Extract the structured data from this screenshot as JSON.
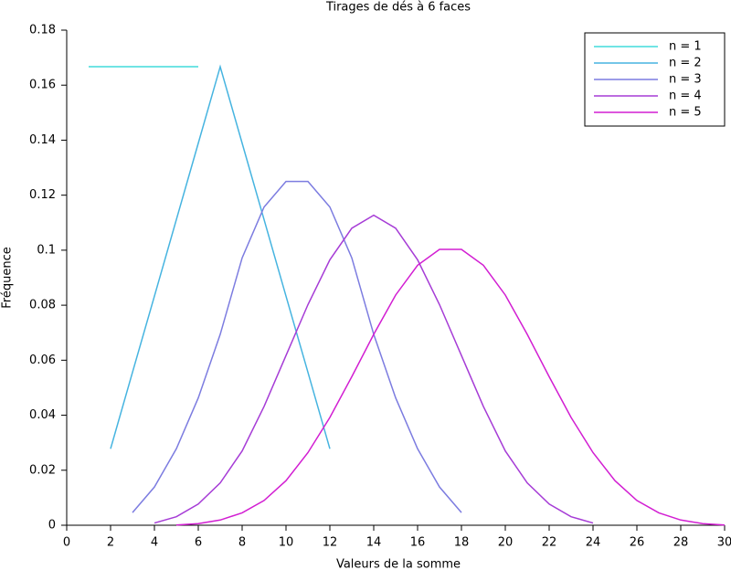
{
  "chart_data": {
    "type": "line",
    "title": "Tirages de dés à 6 faces",
    "x_label": "Valeurs de la somme",
    "y_label": "Fréquence",
    "xlim": [
      0,
      30
    ],
    "ylim": [
      0,
      0.18
    ],
    "xticks": [
      0,
      2,
      4,
      6,
      8,
      10,
      12,
      14,
      16,
      18,
      20,
      22,
      24,
      26,
      28,
      30
    ],
    "yticks": [
      0,
      0.02,
      0.04,
      0.06,
      0.08,
      0.1,
      0.12,
      0.14,
      0.16,
      0.18
    ],
    "legend": "upper right",
    "series": [
      {
        "name": "n = 1",
        "color": "#40dcdc",
        "x": [
          1,
          2,
          3,
          4,
          5,
          6
        ],
        "values": [
          0.1667,
          0.1667,
          0.1667,
          0.1667,
          0.1667,
          0.1667
        ]
      },
      {
        "name": "n = 2",
        "color": "#46b4e0",
        "x": [
          2,
          3,
          4,
          5,
          6,
          7,
          8,
          9,
          10,
          11,
          12
        ],
        "values": [
          0.0278,
          0.0556,
          0.0833,
          0.1111,
          0.1389,
          0.1667,
          0.1389,
          0.1111,
          0.0833,
          0.0556,
          0.0278
        ]
      },
      {
        "name": "n = 3",
        "color": "#7c7ce0",
        "x": [
          3,
          4,
          5,
          6,
          7,
          8,
          9,
          10,
          11,
          12,
          13,
          14,
          15,
          16,
          17,
          18
        ],
        "values": [
          0.0046,
          0.0139,
          0.0278,
          0.0463,
          0.0694,
          0.0972,
          0.1157,
          0.125,
          0.125,
          0.1157,
          0.0972,
          0.0694,
          0.0463,
          0.0278,
          0.0139,
          0.0046
        ]
      },
      {
        "name": "n = 4",
        "color": "#a63cd6",
        "x": [
          4,
          5,
          6,
          7,
          8,
          9,
          10,
          11,
          12,
          13,
          14,
          15,
          16,
          17,
          18,
          19,
          20,
          21,
          22,
          23,
          24
        ],
        "values": [
          0.0008,
          0.0031,
          0.0077,
          0.0154,
          0.027,
          0.0432,
          0.0617,
          0.0802,
          0.0965,
          0.108,
          0.1127,
          0.108,
          0.0965,
          0.0802,
          0.0617,
          0.0432,
          0.027,
          0.0154,
          0.0077,
          0.0031,
          0.0008
        ]
      },
      {
        "name": "n = 5",
        "color": "#d21ed2",
        "x": [
          5,
          6,
          7,
          8,
          9,
          10,
          11,
          12,
          13,
          14,
          15,
          16,
          17,
          18,
          19,
          20,
          21,
          22,
          23,
          24,
          25,
          26,
          27,
          28,
          29,
          30
        ],
        "values": [
          0.0001,
          0.0006,
          0.0019,
          0.0045,
          0.009,
          0.0162,
          0.0264,
          0.0392,
          0.054,
          0.0694,
          0.0837,
          0.0945,
          0.1003,
          0.1003,
          0.0945,
          0.0837,
          0.0694,
          0.054,
          0.0392,
          0.0264,
          0.0162,
          0.009,
          0.0045,
          0.0019,
          0.0006,
          0.0001
        ]
      }
    ]
  }
}
